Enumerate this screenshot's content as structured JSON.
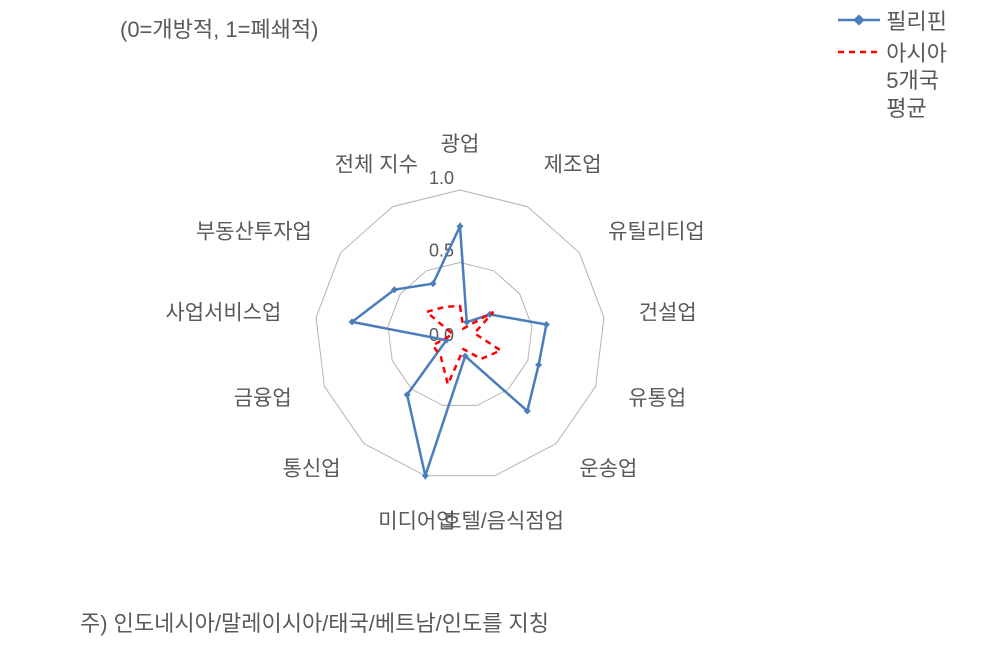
{
  "subtitle": "(0=개방적, 1=폐쇄적)",
  "footnote": "주) 인도네시아/말레이시아/태국/베트남/인도를 지칭",
  "legend": {
    "series1": "필리핀",
    "series2": "아시아\n5개국\n평균"
  },
  "chart": {
    "type": "radar",
    "categories": [
      "광업",
      "제조업",
      "유틸리티업",
      "건설업",
      "유통업",
      "운송업",
      "호텔/음식점업",
      "미디어업",
      "통신업",
      "금융업",
      "사업서비스업",
      "부동산투자업",
      "전체 지수"
    ],
    "label_anchors": [
      "middle",
      "start",
      "start",
      "start",
      "start",
      "start",
      "middle",
      "middle",
      "end",
      "end",
      "end",
      "end",
      "middle"
    ],
    "rmax": 1.0,
    "rings": [
      0.5,
      1.0
    ],
    "ring_labels": [
      "0.5",
      "1.0"
    ],
    "center_label": "0.0",
    "grid_color": "#b3b3b3",
    "grid_width": 1,
    "background_color": "#ffffff",
    "tick_fontsize": 18,
    "label_fontsize": 21,
    "series": [
      {
        "name": "필리핀",
        "color": "#4a7ebb",
        "stroke_width": 2.5,
        "dash": "none",
        "marker": "diamond",
        "marker_size": 7,
        "fill_opacity": 0,
        "values": [
          0.75,
          0.1,
          0.25,
          0.6,
          0.58,
          0.7,
          0.15,
          1.0,
          0.55,
          0.1,
          0.75,
          0.55,
          0.4
        ]
      },
      {
        "name": "아시아 5개국 평균",
        "color": "#ff0000",
        "stroke_width": 2.5,
        "dash": "6,5",
        "marker": "none",
        "marker_size": 0,
        "fill_opacity": 0,
        "values": [
          0.2,
          0.05,
          0.28,
          0.1,
          0.3,
          0.22,
          0.1,
          0.35,
          0.2,
          0.2,
          0.05,
          0.28,
          0.22
        ]
      }
    ]
  }
}
